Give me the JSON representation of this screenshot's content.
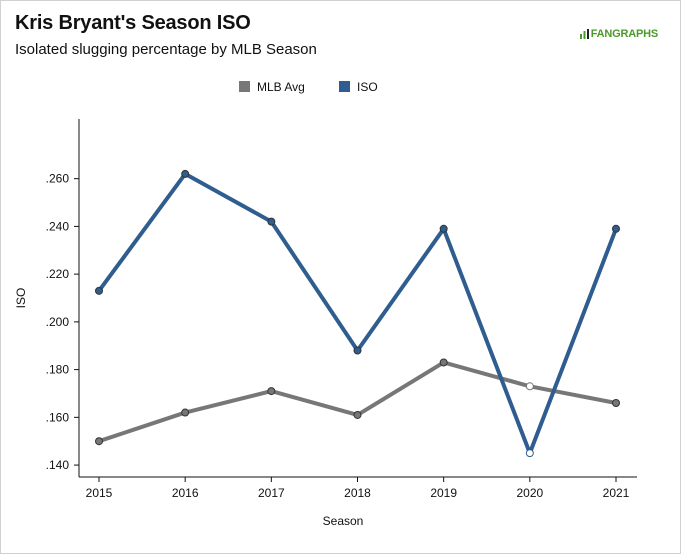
{
  "header": {
    "title": "Kris Bryant's Season ISO",
    "subtitle": "Isolated slugging percentage by MLB Season",
    "brand": "FANGRAPHS"
  },
  "colors": {
    "mlb_avg": "#777777",
    "iso": "#2f5d8f",
    "brand": "#4a9a2b"
  },
  "chart_data": {
    "type": "line",
    "xlabel": "Season",
    "ylabel": "ISO",
    "x": [
      "2015",
      "2016",
      "2017",
      "2018",
      "2019",
      "2020",
      "2021"
    ],
    "ylim": [
      0.135,
      0.285
    ],
    "yticks": [
      ".140",
      ".160",
      ".180",
      ".200",
      ".220",
      ".240",
      ".260"
    ],
    "ytick_values": [
      0.14,
      0.16,
      0.18,
      0.2,
      0.22,
      0.24,
      0.26
    ],
    "grid": false,
    "legend_position": "top-center",
    "series": [
      {
        "name": "MLB Avg",
        "color": "#777777",
        "values": [
          0.15,
          0.162,
          0.171,
          0.161,
          0.183,
          0.173,
          0.166
        ]
      },
      {
        "name": "ISO",
        "color": "#2f5d8f",
        "values": [
          0.213,
          0.262,
          0.242,
          0.188,
          0.239,
          0.145,
          0.239
        ]
      }
    ],
    "hollow_markers": [
      {
        "series": "MLB Avg",
        "x": "2020"
      },
      {
        "series": "ISO",
        "x": "2020"
      }
    ]
  }
}
